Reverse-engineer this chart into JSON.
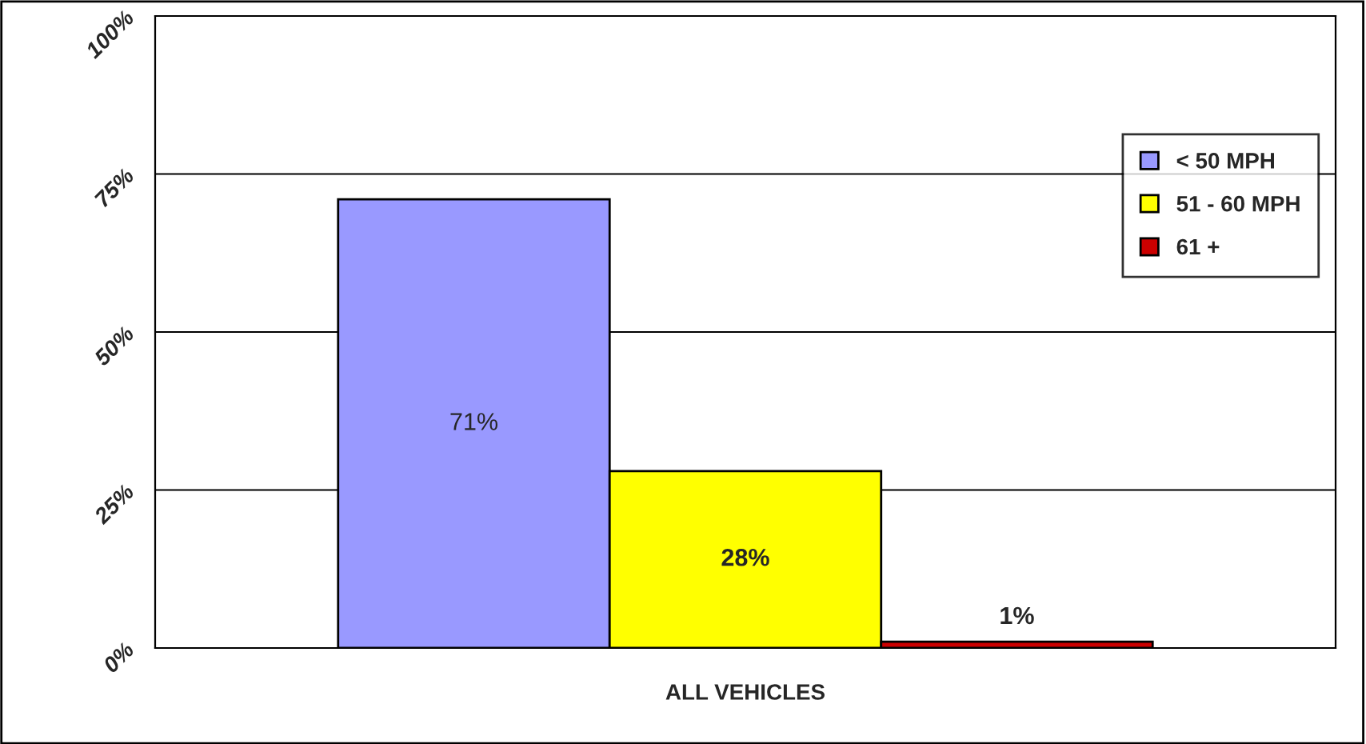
{
  "chart_data": {
    "type": "bar",
    "categories": [
      "ALL VEHICLES"
    ],
    "series": [
      {
        "name": "< 50 MPH",
        "color": "#9999ff",
        "values": [
          71
        ],
        "value_labels": [
          "71%"
        ]
      },
      {
        "name": "51 - 60 MPH",
        "color": "#ffff00",
        "values": [
          28
        ],
        "value_labels": [
          "28%"
        ]
      },
      {
        "name": "61 +",
        "color": "#cc0000",
        "values": [
          1
        ],
        "value_labels": [
          "1%"
        ]
      }
    ],
    "ylim": [
      0,
      100
    ],
    "yticks": [
      {
        "value": 0,
        "label": "0%"
      },
      {
        "value": 25,
        "label": "25%"
      },
      {
        "value": 50,
        "label": "50%"
      },
      {
        "value": 75,
        "label": "75%"
      },
      {
        "value": 100,
        "label": "100%"
      }
    ],
    "grid": "y",
    "legend": "right"
  }
}
